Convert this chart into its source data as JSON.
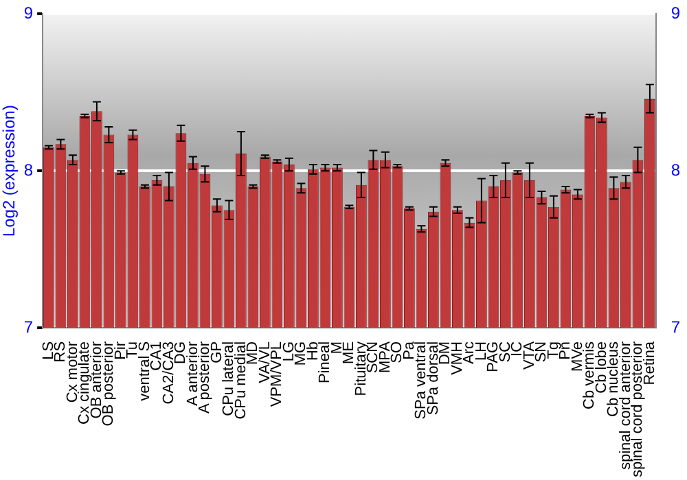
{
  "chart_data": {
    "type": "bar",
    "ylabel": "Log2 (expression)",
    "categories": [
      "LS",
      "RS",
      "Cx motor",
      "Cx cingulate",
      "OB anterior",
      "OB posterior",
      "Pir",
      "Tu",
      "ventral S",
      "CA1",
      "CA2/CA3",
      "DG",
      "A anterior",
      "A posterior",
      "GP",
      "CPu lateral",
      "CPu medial",
      "MD",
      "VA/VL",
      "VPM/VPL",
      "LG",
      "MG",
      "Hb",
      "Pineal",
      "M",
      "ME",
      "Pituitary",
      "SCN",
      "MPA",
      "SO",
      "Pa",
      "SPa ventral",
      "SPa dorsal",
      "DM",
      "VMH",
      "Arc",
      "LH",
      "PAG",
      "SC",
      "IC",
      "VTA",
      "SN",
      "Tg",
      "Pn",
      "MVe",
      "Cb vermis",
      "Cb lobe",
      "Cb nucleus",
      "spinal cord anterior",
      "spinal cord posterior",
      "Retina"
    ],
    "values": [
      8.15,
      8.17,
      8.07,
      8.35,
      8.38,
      8.23,
      7.99,
      8.23,
      7.9,
      7.94,
      7.9,
      8.24,
      8.05,
      7.98,
      7.78,
      7.75,
      8.11,
      7.9,
      8.09,
      8.06,
      8.04,
      7.89,
      8.01,
      8.02,
      8.02,
      7.77,
      7.91,
      8.07,
      8.07,
      8.03,
      7.76,
      7.63,
      7.74,
      8.05,
      7.75,
      7.67,
      7.81,
      7.9,
      7.94,
      7.99,
      7.94,
      7.83,
      7.77,
      7.88,
      7.85,
      8.35,
      8.34,
      7.89,
      7.93,
      8.07,
      8.46
    ],
    "errors": [
      0.01,
      0.03,
      0.03,
      0.01,
      0.06,
      0.05,
      0.01,
      0.03,
      0.01,
      0.03,
      0.09,
      0.05,
      0.04,
      0.05,
      0.04,
      0.06,
      0.14,
      0.01,
      0.01,
      0.01,
      0.04,
      0.03,
      0.03,
      0.02,
      0.02,
      0.01,
      0.08,
      0.06,
      0.05,
      0.01,
      0.01,
      0.02,
      0.03,
      0.02,
      0.02,
      0.03,
      0.14,
      0.07,
      0.11,
      0.01,
      0.11,
      0.04,
      0.07,
      0.02,
      0.03,
      0.01,
      0.03,
      0.07,
      0.04,
      0.08,
      0.09
    ],
    "color": "#c0393b",
    "ylim": [
      7,
      9
    ],
    "yticks": [
      7,
      8,
      9
    ],
    "y2lim": [
      7,
      9
    ],
    "y2ticks": [
      7,
      8,
      9
    ],
    "grid": "y",
    "legend": false
  }
}
